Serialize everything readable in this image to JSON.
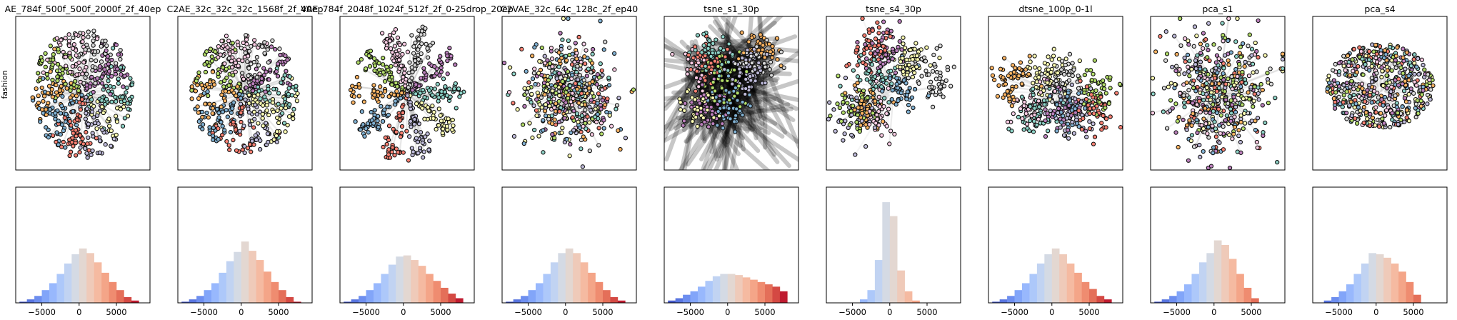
{
  "figure": {
    "row_label": "fashion"
  },
  "chart_data": [
    {
      "type": "scatter",
      "title": "AE_784f_500f_500f_2000f_2f_40ep",
      "ylabel": "fashion",
      "grid": false,
      "style": "points-with-trails",
      "trail_intensity": 0.3,
      "pattern": "radial",
      "spread": [
        0.75,
        0.85
      ],
      "seed": 11
    },
    {
      "type": "scatter",
      "title": "C2AE_32c_32c_32c_1568f_2f_40ep",
      "grid": false,
      "style": "points-with-trails",
      "trail_intensity": 0.3,
      "pattern": "radial",
      "spread": [
        0.8,
        0.8
      ],
      "seed": 23
    },
    {
      "type": "scatter",
      "title": "VAE_784f_2048f_1024f_512f_2f_0-25drop_20ep",
      "grid": false,
      "style": "points-with-trails",
      "trail_intensity": 0.35,
      "pattern": "star",
      "spread": [
        0.85,
        0.9
      ],
      "seed": 37
    },
    {
      "type": "scatter",
      "title": "C2VAE_32c_64c_128c_2f_ep40",
      "grid": false,
      "style": "points-with-trails",
      "trail_intensity": 0.3,
      "pattern": "blob",
      "spread": [
        0.85,
        0.8
      ],
      "seed": 41
    },
    {
      "type": "scatter",
      "title": "tsne_s1_30p",
      "grid": false,
      "style": "points-with-trails",
      "trail_intensity": 1.0,
      "pattern": "clusters",
      "spread": [
        0.8,
        0.8
      ],
      "seed": 53
    },
    {
      "type": "scatter",
      "title": "tsne_s4_30p",
      "grid": false,
      "style": "points-with-trails",
      "trail_intensity": 0.15,
      "pattern": "clusters",
      "spread": [
        0.85,
        0.85
      ],
      "seed": 67
    },
    {
      "type": "scatter",
      "title": "dtsne_100p_0-1l",
      "grid": false,
      "style": "points-with-trails",
      "trail_intensity": 0.2,
      "pattern": "clusters",
      "spread": [
        0.85,
        0.85
      ],
      "seed": 71
    },
    {
      "type": "scatter",
      "title": "pca_s1",
      "grid": false,
      "style": "points-with-trails",
      "trail_intensity": 0.25,
      "pattern": "blob",
      "spread": [
        0.85,
        0.9
      ],
      "seed": 83
    },
    {
      "type": "scatter",
      "title": "pca_s4",
      "grid": false,
      "style": "points-with-trails",
      "trail_intensity": 0.2,
      "pattern": "ellipse",
      "spread": [
        0.8,
        0.55
      ],
      "seed": 97
    },
    {
      "type": "bar",
      "subtype": "histogram",
      "xlim": [
        -8500,
        9500
      ],
      "ylim": [
        0,
        1
      ],
      "xticks": [
        -5000,
        0,
        5000
      ],
      "xtick_labels": [
        "−5000",
        "0",
        "5000"
      ],
      "bin_centers": [
        -7500,
        -6500,
        -5500,
        -4500,
        -3500,
        -2500,
        -1500,
        -500,
        500,
        1500,
        2500,
        3500,
        4500,
        5500,
        6500,
        7500
      ],
      "values": [
        0.01,
        0.03,
        0.06,
        0.11,
        0.17,
        0.25,
        0.34,
        0.42,
        0.47,
        0.43,
        0.35,
        0.26,
        0.18,
        0.11,
        0.05,
        0.02
      ],
      "colormap": "coolwarm"
    },
    {
      "type": "bar",
      "subtype": "histogram",
      "xlim": [
        -8500,
        9500
      ],
      "ylim": [
        0,
        1
      ],
      "xticks": [
        -5000,
        0,
        5000
      ],
      "xtick_labels": [
        "−5000",
        "0",
        "5000"
      ],
      "bin_centers": [
        -7500,
        -6500,
        -5500,
        -4500,
        -3500,
        -2500,
        -1500,
        -500,
        500,
        1500,
        2500,
        3500,
        4500,
        5500,
        6500,
        7500
      ],
      "values": [
        0.01,
        0.03,
        0.06,
        0.11,
        0.17,
        0.26,
        0.36,
        0.44,
        0.53,
        0.45,
        0.37,
        0.27,
        0.18,
        0.11,
        0.05,
        0.01
      ],
      "colormap": "coolwarm"
    },
    {
      "type": "bar",
      "subtype": "histogram",
      "xlim": [
        -8500,
        9500
      ],
      "ylim": [
        0,
        1
      ],
      "xticks": [
        -5000,
        0,
        5000
      ],
      "xtick_labels": [
        "−5000",
        "0",
        "5000"
      ],
      "bin_centers": [
        -7500,
        -6500,
        -5500,
        -4500,
        -3500,
        -2500,
        -1500,
        -500,
        500,
        1500,
        2500,
        3500,
        4500,
        5500,
        6500,
        7500
      ],
      "values": [
        0.01,
        0.03,
        0.06,
        0.11,
        0.17,
        0.25,
        0.33,
        0.4,
        0.41,
        0.37,
        0.32,
        0.25,
        0.19,
        0.13,
        0.08,
        0.04
      ],
      "colormap": "coolwarm"
    },
    {
      "type": "bar",
      "subtype": "histogram",
      "xlim": [
        -8500,
        9500
      ],
      "ylim": [
        0,
        1
      ],
      "xticks": [
        -5000,
        0,
        5000
      ],
      "xtick_labels": [
        "−5000",
        "0",
        "5000"
      ],
      "bin_centers": [
        -7500,
        -6500,
        -5500,
        -4500,
        -3500,
        -2500,
        -1500,
        -500,
        500,
        1500,
        2500,
        3500,
        4500,
        5500,
        6500,
        7500
      ],
      "values": [
        0.01,
        0.03,
        0.06,
        0.11,
        0.17,
        0.25,
        0.35,
        0.43,
        0.47,
        0.43,
        0.35,
        0.26,
        0.18,
        0.11,
        0.05,
        0.02
      ],
      "colormap": "coolwarm"
    },
    {
      "type": "bar",
      "subtype": "histogram",
      "xlim": [
        -8500,
        9500
      ],
      "ylim": [
        0,
        1
      ],
      "xticks": [
        -5000,
        0,
        5000
      ],
      "xtick_labels": [
        "−5000",
        "0",
        "5000"
      ],
      "bin_centers": [
        -7500,
        -6500,
        -5500,
        -4500,
        -3500,
        -2500,
        -1500,
        -500,
        500,
        1500,
        2500,
        3500,
        4500,
        5500,
        6500,
        7500
      ],
      "values": [
        0.02,
        0.04,
        0.07,
        0.1,
        0.14,
        0.19,
        0.23,
        0.25,
        0.25,
        0.24,
        0.22,
        0.2,
        0.18,
        0.16,
        0.14,
        0.1
      ],
      "colormap": "coolwarm"
    },
    {
      "type": "bar",
      "subtype": "histogram",
      "xlim": [
        -8500,
        9500
      ],
      "ylim": [
        0,
        1
      ],
      "xticks": [
        -5000,
        0,
        5000
      ],
      "xtick_labels": [
        "−5000",
        "0",
        "5000"
      ],
      "bin_centers": [
        -3500,
        -2500,
        -1500,
        -500,
        500,
        1500,
        2500,
        3500
      ],
      "values": [
        0.03,
        0.11,
        0.37,
        0.87,
        0.75,
        0.28,
        0.1,
        0.02
      ],
      "colormap": "coolwarm"
    },
    {
      "type": "bar",
      "subtype": "histogram",
      "xlim": [
        -8500,
        9500
      ],
      "ylim": [
        0,
        1
      ],
      "xticks": [
        -5000,
        0,
        5000
      ],
      "xtick_labels": [
        "−5000",
        "0",
        "5000"
      ],
      "bin_centers": [
        -7500,
        -6500,
        -5500,
        -4500,
        -3500,
        -2500,
        -1500,
        -500,
        500,
        1500,
        2500,
        3500,
        4500,
        5500,
        6500,
        7500
      ],
      "values": [
        0.01,
        0.03,
        0.06,
        0.11,
        0.17,
        0.25,
        0.34,
        0.42,
        0.47,
        0.42,
        0.34,
        0.26,
        0.18,
        0.12,
        0.06,
        0.03
      ],
      "colormap": "coolwarm"
    },
    {
      "type": "bar",
      "subtype": "histogram",
      "xlim": [
        -8500,
        9500
      ],
      "ylim": [
        0,
        1
      ],
      "xticks": [
        -5000,
        0,
        5000
      ],
      "xtick_labels": [
        "−5000",
        "0",
        "5000"
      ],
      "bin_centers": [
        -7500,
        -6500,
        -5500,
        -4500,
        -3500,
        -2500,
        -1500,
        -500,
        500,
        1500,
        2500,
        3500,
        4500,
        5500
      ],
      "values": [
        0.01,
        0.03,
        0.06,
        0.1,
        0.16,
        0.25,
        0.35,
        0.43,
        0.54,
        0.5,
        0.38,
        0.25,
        0.13,
        0.04
      ],
      "colormap": "coolwarm"
    },
    {
      "type": "bar",
      "subtype": "histogram",
      "xlim": [
        -8500,
        9500
      ],
      "ylim": [
        0,
        1
      ],
      "xticks": [
        -5000,
        0,
        5000
      ],
      "xtick_labels": [
        "−5000",
        "0",
        "5000"
      ],
      "bin_centers": [
        -6500,
        -5500,
        -4500,
        -3500,
        -2500,
        -1500,
        -500,
        500,
        1500,
        2500,
        3500,
        4500,
        5500
      ],
      "values": [
        0.02,
        0.05,
        0.1,
        0.16,
        0.25,
        0.34,
        0.43,
        0.42,
        0.39,
        0.34,
        0.27,
        0.18,
        0.07
      ],
      "colormap": "coolwarm"
    }
  ]
}
